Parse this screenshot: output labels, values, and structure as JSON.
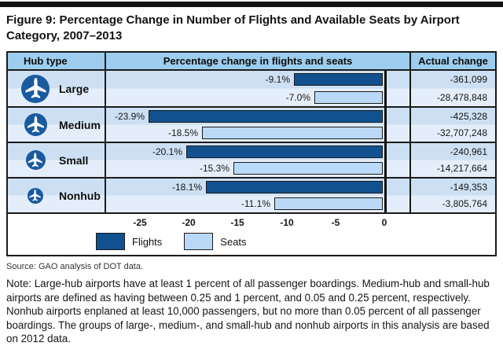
{
  "title": "Figure 9: Percentage Change in Number of Flights and Available Seats by Airport Category, 2007–2013",
  "table": {
    "col_hub": "Hub type",
    "col_chart": "Percentage change in flights and seats",
    "col_actual": "Actual change"
  },
  "chart_data": {
    "type": "bar",
    "orientation": "horizontal",
    "title": "Percentage change in flights and seats",
    "series_names": [
      "Flights",
      "Seats"
    ],
    "x_unit": "percent",
    "xlim": [
      -28.5,
      2.5
    ],
    "x_ticks": [
      -25,
      -20,
      -15,
      -10,
      -5,
      0
    ],
    "x_tick_labels": [
      "-25",
      "-20",
      "-15",
      "-10",
      "-5",
      "0"
    ],
    "rows": [
      {
        "hub": "Large",
        "flights_pct": -9.1,
        "flights_pct_label": "-9.1%",
        "flights_actual": "-361,099",
        "seats_pct": -7.0,
        "seats_pct_label": "-7.0%",
        "seats_actual": "-28,478,848"
      },
      {
        "hub": "Medium",
        "flights_pct": -23.9,
        "flights_pct_label": "-23.9%",
        "flights_actual": "-425,328",
        "seats_pct": -18.5,
        "seats_pct_label": "-18.5%",
        "seats_actual": "-32,707,248"
      },
      {
        "hub": "Small",
        "flights_pct": -20.1,
        "flights_pct_label": "-20.1%",
        "flights_actual": "-240,961",
        "seats_pct": -15.3,
        "seats_pct_label": "-15.3%",
        "seats_actual": "-14,217,664"
      },
      {
        "hub": "Nonhub",
        "flights_pct": -18.1,
        "flights_pct_label": "-18.1%",
        "flights_actual": "-149,353",
        "seats_pct": -11.1,
        "seats_pct_label": "-11.1%",
        "seats_actual": "-3,805,764"
      }
    ]
  },
  "legend": {
    "flights": "Flights",
    "seats": "Seats"
  },
  "colors": {
    "flights_bar": "#11518f",
    "seats_bar": "#b9d9f6",
    "header_bg": "#9ccdee",
    "band_dark": "#cde0f3",
    "band_light": "#e4eefa",
    "icon_blue": "#1b5a9f"
  },
  "source": "Source: GAO analysis of DOT data.",
  "note": "Note: Large-hub airports have at least 1 percent of all passenger boardings. Medium-hub and small-hub airports are defined as having between 0.25 and 1 percent, and 0.05 and 0.25 percent, respectively. Nonhub airports enplaned at least 10,000 passengers, but no more than 0.05 percent of all passenger boardings. The groups of large-, medium-, and small-hub and nonhub airports in this analysis are based on 2012 data."
}
